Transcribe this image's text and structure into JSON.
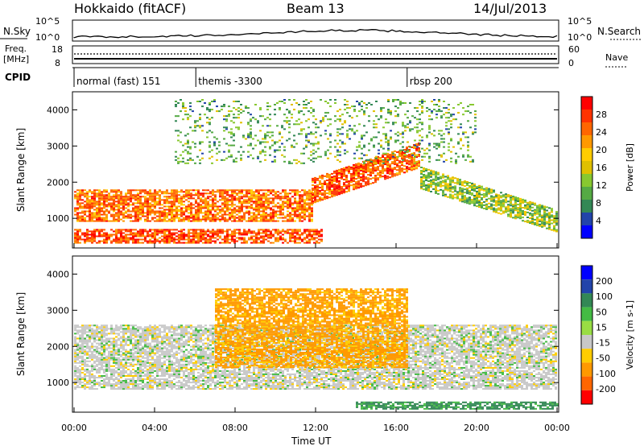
{
  "header": {
    "title": "Hokkaido (fitACF)",
    "beam": "Beam 13",
    "date": "14/Jul/2013"
  },
  "top_panels": {
    "nsky_label": "N.Sky",
    "nsky_ticks": [
      "10^5",
      "10^0"
    ],
    "nsearch_label": "N.Search",
    "nsearch_ticks": [
      "10^5",
      "10^0"
    ],
    "freq_label_line1": "Freq.",
    "freq_label_line2": "[MHz]",
    "freq_ticks": [
      "18",
      "8"
    ],
    "nave_label": "Nave",
    "nave_ticks": [
      "60",
      "0"
    ],
    "cpid_label": "CPID",
    "cpid_segments": [
      {
        "label": "normal (fast) 151",
        "start_hour": 0
      },
      {
        "label": "themis -3300",
        "start_hour": 6.05
      },
      {
        "label": "rbsp 200",
        "start_hour": 16.55
      }
    ]
  },
  "chart_data": [
    {
      "type": "heatmap",
      "title": "Power",
      "xlabel": "Time UT",
      "ylabel": "Slant Range [km]",
      "xlim": [
        0,
        24
      ],
      "ylim": [
        180,
        4500
      ],
      "x_ticks": [
        "00:00",
        "04:00",
        "08:00",
        "12:00",
        "16:00",
        "20:00",
        "00:00"
      ],
      "y_ticks": [
        "1000",
        "2000",
        "3000",
        "4000"
      ],
      "colorbar_label": "Power [dB]",
      "colorbar_ticks": [
        "28",
        "24",
        "20",
        "16",
        "12",
        "8",
        "4"
      ],
      "colorbar_colors": [
        "#ff0000",
        "#ff3300",
        "#ff6600",
        "#ff9900",
        "#ffcc00",
        "#e0c000",
        "#88c830",
        "#55aa44",
        "#338855",
        "#2244aa",
        "#0000ff"
      ],
      "features": [
        {
          "name": "low-range strong echo",
          "time_start": 0.0,
          "time_end": 12.3,
          "range_low": 300,
          "range_high": 700,
          "power_db": 28
        },
        {
          "name": "main band",
          "time_start": 0.0,
          "time_end": 11.8,
          "range_low": 900,
          "range_high": 1800,
          "power_db": 26
        },
        {
          "name": "rising band",
          "time_start": 11.8,
          "time_end": 17.2,
          "range_low": 1400,
          "range_high": 3000,
          "power_db": 27
        },
        {
          "name": "descending band",
          "time_start": 17.2,
          "time_end": 24.0,
          "range_low": 900,
          "range_high": 2400,
          "power_db": 16
        },
        {
          "name": "scattered high-range echoes",
          "time_start": 5.0,
          "time_end": 20.0,
          "range_low": 2500,
          "range_high": 4300,
          "power_db": 14
        }
      ]
    },
    {
      "type": "heatmap",
      "title": "Velocity",
      "xlabel": "Time UT",
      "ylabel": "Slant Range [km]",
      "xlim": [
        0,
        24
      ],
      "ylim": [
        180,
        4500
      ],
      "x_ticks": [
        "00:00",
        "04:00",
        "08:00",
        "12:00",
        "16:00",
        "20:00",
        "00:00"
      ],
      "y_ticks": [
        "1000",
        "2000",
        "3000",
        "4000"
      ],
      "colorbar_label": "Velocity [m s-1]",
      "colorbar_ticks": [
        "200",
        "100",
        "50",
        "15",
        "-15",
        "-50",
        "-100",
        "-200"
      ],
      "colorbar_colors": [
        "#0000ff",
        "#2244aa",
        "#338855",
        "#44bb44",
        "#99dd44",
        "#c8c8c8",
        "#ffcc00",
        "#ff9900",
        "#ff6600",
        "#ff0000"
      ],
      "features": [
        {
          "name": "ground scatter main band",
          "time_start": 0.0,
          "time_end": 24.0,
          "range_low": 800,
          "range_high": 2600,
          "velocity": 0
        },
        {
          "name": "orange flow patches",
          "time_start": 7.0,
          "time_end": 16.5,
          "range_low": 1400,
          "range_high": 3600,
          "velocity": -60
        },
        {
          "name": "green low-range flow",
          "time_start": 14.0,
          "time_end": 24.0,
          "range_low": 250,
          "range_high": 450,
          "velocity": 60
        }
      ]
    }
  ]
}
